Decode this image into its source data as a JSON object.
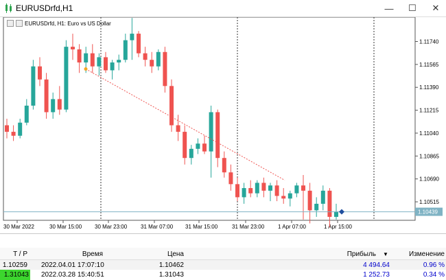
{
  "window": {
    "title": "EURUSDrfd,H1",
    "minimize_label": "—",
    "maximize_label": "☐",
    "close_label": "✕"
  },
  "chart": {
    "label": "EURUSDrfd, H1:  Euro vs US Dollar",
    "current_price": "1.10439",
    "colors": {
      "up": "#26a69a",
      "down": "#ef5350",
      "bid": "#7fb3c4",
      "trend": "#ef5350"
    }
  },
  "chart_data": {
    "type": "candlestick",
    "title": "EURUSDrfd, H1:  Euro vs US Dollar",
    "y_ticks": [
      "1.11740",
      "1.11565",
      "1.11390",
      "1.11215",
      "1.11040",
      "1.10865",
      "1.10690",
      "1.10515"
    ],
    "ylim": [
      1.104,
      1.119
    ],
    "x_ticks": [
      "30 Mar 2022",
      "30 Mar 15:00",
      "30 Mar 23:00",
      "31 Mar 07:00",
      "31 Mar 15:00",
      "31 Mar 23:00",
      "1 Apr 07:00",
      "1 Apr 15:00"
    ],
    "candles": [
      {
        "o": 1.111,
        "h": 1.1115,
        "l": 1.11,
        "c": 1.1105
      },
      {
        "o": 1.1105,
        "h": 1.111,
        "l": 1.1098,
        "c": 1.1102
      },
      {
        "o": 1.1102,
        "h": 1.1115,
        "l": 1.11,
        "c": 1.1112
      },
      {
        "o": 1.1112,
        "h": 1.113,
        "l": 1.111,
        "c": 1.1125
      },
      {
        "o": 1.1125,
        "h": 1.116,
        "l": 1.1122,
        "c": 1.1155
      },
      {
        "o": 1.1155,
        "h": 1.1162,
        "l": 1.114,
        "c": 1.1145
      },
      {
        "o": 1.1145,
        "h": 1.115,
        "l": 1.1115,
        "c": 1.112
      },
      {
        "o": 1.112,
        "h": 1.1135,
        "l": 1.1115,
        "c": 1.113
      },
      {
        "o": 1.113,
        "h": 1.114,
        "l": 1.1118,
        "c": 1.1122
      },
      {
        "o": 1.1122,
        "h": 1.1175,
        "l": 1.112,
        "c": 1.117
      },
      {
        "o": 1.117,
        "h": 1.118,
        "l": 1.116,
        "c": 1.1168
      },
      {
        "o": 1.1168,
        "h": 1.1172,
        "l": 1.115,
        "c": 1.1158
      },
      {
        "o": 1.1158,
        "h": 1.117,
        "l": 1.115,
        "c": 1.1165
      },
      {
        "o": 1.1165,
        "h": 1.1172,
        "l": 1.115,
        "c": 1.1155
      },
      {
        "o": 1.1155,
        "h": 1.1165,
        "l": 1.1148,
        "c": 1.1162
      },
      {
        "o": 1.1162,
        "h": 1.1166,
        "l": 1.115,
        "c": 1.1152
      },
      {
        "o": 1.1152,
        "h": 1.116,
        "l": 1.1145,
        "c": 1.1158
      },
      {
        "o": 1.1158,
        "h": 1.1164,
        "l": 1.1152,
        "c": 1.116
      },
      {
        "o": 1.116,
        "h": 1.118,
        "l": 1.1158,
        "c": 1.1175
      },
      {
        "o": 1.1175,
        "h": 1.1192,
        "l": 1.116,
        "c": 1.118
      },
      {
        "o": 1.118,
        "h": 1.1182,
        "l": 1.1162,
        "c": 1.1165
      },
      {
        "o": 1.1165,
        "h": 1.117,
        "l": 1.1155,
        "c": 1.116
      },
      {
        "o": 1.116,
        "h": 1.1166,
        "l": 1.115,
        "c": 1.1155
      },
      {
        "o": 1.1155,
        "h": 1.1168,
        "l": 1.1152,
        "c": 1.1166
      },
      {
        "o": 1.1166,
        "h": 1.117,
        "l": 1.1135,
        "c": 1.114
      },
      {
        "o": 1.114,
        "h": 1.1145,
        "l": 1.1105,
        "c": 1.111
      },
      {
        "o": 1.111,
        "h": 1.1118,
        "l": 1.1098,
        "c": 1.1105
      },
      {
        "o": 1.1105,
        "h": 1.111,
        "l": 1.108,
        "c": 1.1085
      },
      {
        "o": 1.1085,
        "h": 1.1095,
        "l": 1.108,
        "c": 1.1092
      },
      {
        "o": 1.1092,
        "h": 1.11,
        "l": 1.1088,
        "c": 1.1096
      },
      {
        "o": 1.1096,
        "h": 1.1102,
        "l": 1.1088,
        "c": 1.109
      },
      {
        "o": 1.109,
        "h": 1.1125,
        "l": 1.107,
        "c": 1.112
      },
      {
        "o": 1.112,
        "h": 1.1122,
        "l": 1.1078,
        "c": 1.1085
      },
      {
        "o": 1.1085,
        "h": 1.109,
        "l": 1.107,
        "c": 1.1074
      },
      {
        "o": 1.1074,
        "h": 1.108,
        "l": 1.106,
        "c": 1.1065
      },
      {
        "o": 1.1065,
        "h": 1.107,
        "l": 1.1052,
        "c": 1.1055
      },
      {
        "o": 1.1055,
        "h": 1.1066,
        "l": 1.105,
        "c": 1.1062
      },
      {
        "o": 1.1062,
        "h": 1.1068,
        "l": 1.1055,
        "c": 1.1058
      },
      {
        "o": 1.1058,
        "h": 1.1068,
        "l": 1.1055,
        "c": 1.1066
      },
      {
        "o": 1.1066,
        "h": 1.107,
        "l": 1.1055,
        "c": 1.106
      },
      {
        "o": 1.106,
        "h": 1.1066,
        "l": 1.1052,
        "c": 1.1064
      },
      {
        "o": 1.1064,
        "h": 1.1068,
        "l": 1.1052,
        "c": 1.1056
      },
      {
        "o": 1.1056,
        "h": 1.1062,
        "l": 1.105,
        "c": 1.1054
      },
      {
        "o": 1.1054,
        "h": 1.106,
        "l": 1.1048,
        "c": 1.1058
      },
      {
        "o": 1.1058,
        "h": 1.1066,
        "l": 1.1055,
        "c": 1.1064
      },
      {
        "o": 1.1064,
        "h": 1.1072,
        "l": 1.1038,
        "c": 1.106
      },
      {
        "o": 1.106,
        "h": 1.1066,
        "l": 1.1035,
        "c": 1.1045
      },
      {
        "o": 1.1045,
        "h": 1.1055,
        "l": 1.104,
        "c": 1.105
      },
      {
        "o": 1.105,
        "h": 1.1064,
        "l": 1.1045,
        "c": 1.106
      },
      {
        "o": 1.106,
        "h": 1.1062,
        "l": 1.1032,
        "c": 1.104
      },
      {
        "o": 1.104,
        "h": 1.105,
        "l": 1.1038,
        "c": 1.1044
      }
    ],
    "trend_line": {
      "x": [
        0.35,
        0.75
      ],
      "y": [
        1.1153,
        1.1068
      ]
    },
    "grid": false
  },
  "table": {
    "headers": {
      "tp": "T / P",
      "time": "Время",
      "price": "Цена",
      "profit": "Прибыль",
      "sort_arrow": "▼",
      "change": "Изменение"
    },
    "rows": [
      {
        "tp": "1.10259",
        "time": "2022.04.01 17:07:10",
        "price": "1.10462",
        "profit": "4 494.64",
        "change": "0.96 %",
        "highlight": false
      },
      {
        "tp": "1.31043",
        "time": "2022.03.28 15:40:51",
        "price": "1.31043",
        "profit": "1 252.73",
        "change": "0.34 %",
        "highlight": true
      }
    ]
  }
}
